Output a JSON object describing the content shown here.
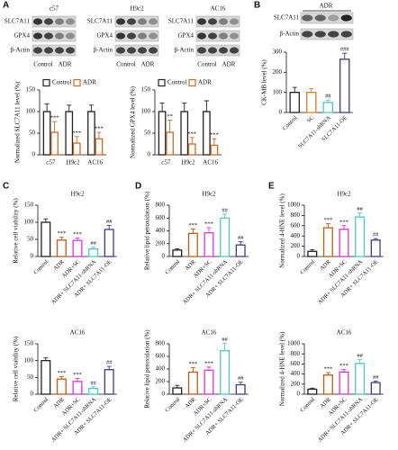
{
  "panel_labels": [
    "A",
    "B",
    "C",
    "D",
    "E"
  ],
  "blots": {
    "A": {
      "cell_lines": [
        "c57",
        "H9c2",
        "AC16"
      ],
      "proteins": [
        "SLC7A11",
        "GPX4",
        "β-Actin"
      ],
      "groups": [
        "Control",
        "ADR"
      ]
    },
    "B": {
      "treatment": "ADR",
      "proteins": [
        "SLC7A11",
        "β-Actin"
      ]
    }
  },
  "chart_data": [
    {
      "type": "bar",
      "ylabel": "Normalized SLC7A11 level (%)",
      "categories": [
        "c57",
        "H9c2",
        "AC16"
      ],
      "series": [
        {
          "name": "Control",
          "color": "#222222",
          "values": [
            100,
            100,
            100
          ],
          "errors": [
            18,
            15,
            15
          ]
        },
        {
          "name": "ADR",
          "color": "#d2691e",
          "values": [
            52,
            27,
            37
          ],
          "errors": [
            25,
            15,
            15
          ],
          "annotations": [
            "***",
            "***",
            "***"
          ]
        }
      ],
      "ylim": [
        0,
        150
      ],
      "yticks": [
        0,
        50,
        100,
        150
      ],
      "legend": "top"
    },
    {
      "type": "bar",
      "ylabel": "Normalized GPX4 level (%)",
      "categories": [
        "c57",
        "H9c2",
        "AC16"
      ],
      "series": [
        {
          "name": "Control",
          "color": "#222222",
          "values": [
            100,
            100,
            100
          ],
          "errors": [
            20,
            20,
            25
          ]
        },
        {
          "name": "ADR",
          "color": "#d2691e",
          "values": [
            52,
            25,
            22
          ],
          "errors": [
            28,
            15,
            15
          ],
          "annotations": [
            "**",
            "***",
            "***"
          ]
        }
      ],
      "ylim": [
        0,
        150
      ],
      "yticks": [
        0,
        50,
        100,
        150
      ],
      "legend": "top"
    },
    {
      "type": "bar",
      "ylabel": "CK-MB level (%)",
      "categories": [
        "Control",
        "SC",
        "SLC7A11-shRNA",
        "SLC7A11-OE"
      ],
      "values": [
        100,
        100,
        50,
        265
      ],
      "errors": [
        25,
        18,
        12,
        30
      ],
      "annotations": [
        null,
        null,
        "##",
        "###"
      ],
      "colors": [
        "#222222",
        "#e07b20",
        "#4cc9c9",
        "#3b3b8c"
      ],
      "ylim": [
        0,
        300
      ],
      "yticks": [
        0,
        100,
        200,
        300
      ]
    },
    {
      "type": "bar",
      "title": "H9c2",
      "ylabel": "Relative cell viability (%)",
      "categories": [
        "Control",
        "ADR",
        "ADR+SC",
        "ADR+ SLC7A11-shRNA",
        "ADR+ SLC7A11-OE"
      ],
      "values": [
        100,
        48,
        47,
        22,
        79
      ],
      "errors": [
        10,
        8,
        7,
        5,
        12
      ],
      "annotations": [
        null,
        "***",
        "***",
        "##",
        "##"
      ],
      "colors": [
        "#222222",
        "#c55a11",
        "#e030e0",
        "#4cc9c9",
        "#3b3b8c"
      ],
      "ylim": [
        0,
        150
      ],
      "yticks": [
        0,
        50,
        100,
        150
      ]
    },
    {
      "type": "bar",
      "title": "H9c2",
      "ylabel": "Relative lipid peroxidation (%)",
      "categories": [
        "Control",
        "ADR",
        "ADR+SC",
        "ADR+ SLC7A11-shRNA",
        "ADR+ SLC7A11-OE"
      ],
      "values": [
        100,
        360,
        370,
        600,
        180
      ],
      "errors": [
        20,
        70,
        80,
        60,
        50
      ],
      "annotations": [
        null,
        "***",
        "***",
        "##",
        "##"
      ],
      "colors": [
        "#222222",
        "#c55a11",
        "#e030e0",
        "#4cc9c9",
        "#3b3b8c"
      ],
      "ylim": [
        0,
        800
      ],
      "yticks": [
        0,
        200,
        400,
        600,
        800
      ]
    },
    {
      "type": "bar",
      "title": "H9c2",
      "ylabel": "Normalized 4-HNE level (%)",
      "categories": [
        "Control",
        "ADR",
        "ADR+SC",
        "ADR+ SLC7A11-shRNA",
        "ADR+ SLC7A11-OE"
      ],
      "values": [
        100,
        560,
        530,
        770,
        320
      ],
      "errors": [
        30,
        80,
        70,
        80,
        30
      ],
      "annotations": [
        null,
        "***",
        "***",
        "##",
        "##"
      ],
      "colors": [
        "#222222",
        "#c55a11",
        "#e030e0",
        "#4cc9c9",
        "#3b3b8c"
      ],
      "ylim": [
        0,
        1000
      ],
      "yticks": [
        0,
        200,
        400,
        600,
        800,
        1000
      ]
    },
    {
      "type": "bar",
      "title": "AC16",
      "ylabel": "Relative cell viability (%)",
      "categories": [
        "Control",
        "ADR",
        "ADR+SC",
        "ADR+ SLC7A11-shRNA",
        "ADR+ SLC7A11-OE"
      ],
      "values": [
        100,
        45,
        38,
        17,
        73
      ],
      "errors": [
        8,
        7,
        9,
        5,
        10
      ],
      "annotations": [
        null,
        "***",
        "***",
        "##",
        "##"
      ],
      "colors": [
        "#222222",
        "#c55a11",
        "#e030e0",
        "#4cc9c9",
        "#3b3b8c"
      ],
      "ylim": [
        0,
        150
      ],
      "yticks": [
        0,
        50,
        100,
        150
      ]
    },
    {
      "type": "bar",
      "title": "AC16",
      "ylabel": "Relative lipid peroxidation (%)",
      "categories": [
        "Control",
        "ADR",
        "ADR+SC",
        "ADR+ SLC7A11-shRNA",
        "ADR+ SLC7A11-OE"
      ],
      "values": [
        100,
        350,
        380,
        690,
        150
      ],
      "errors": [
        40,
        70,
        50,
        120,
        40
      ],
      "annotations": [
        null,
        "***",
        "***",
        "##",
        "##"
      ],
      "colors": [
        "#222222",
        "#c55a11",
        "#e030e0",
        "#4cc9c9",
        "#3b3b8c"
      ],
      "ylim": [
        0,
        800
      ],
      "yticks": [
        0,
        200,
        400,
        600,
        800
      ]
    },
    {
      "type": "bar",
      "title": "AC16",
      "ylabel": "Normalized 4-HNE level (%)",
      "categories": [
        "Control",
        "ADR",
        "ADR+SC",
        "ADR+ SLC7A11-shRNA",
        "ADR+ SLC7A11-OE"
      ],
      "values": [
        100,
        380,
        440,
        610,
        230
      ],
      "errors": [
        20,
        50,
        50,
        80,
        30
      ],
      "annotations": [
        null,
        "***",
        "***",
        "##",
        "##"
      ],
      "colors": [
        "#222222",
        "#c55a11",
        "#e030e0",
        "#4cc9c9",
        "#3b3b8c"
      ],
      "ylim": [
        0,
        1000
      ],
      "yticks": [
        0,
        200,
        400,
        600,
        800,
        1000
      ]
    }
  ]
}
